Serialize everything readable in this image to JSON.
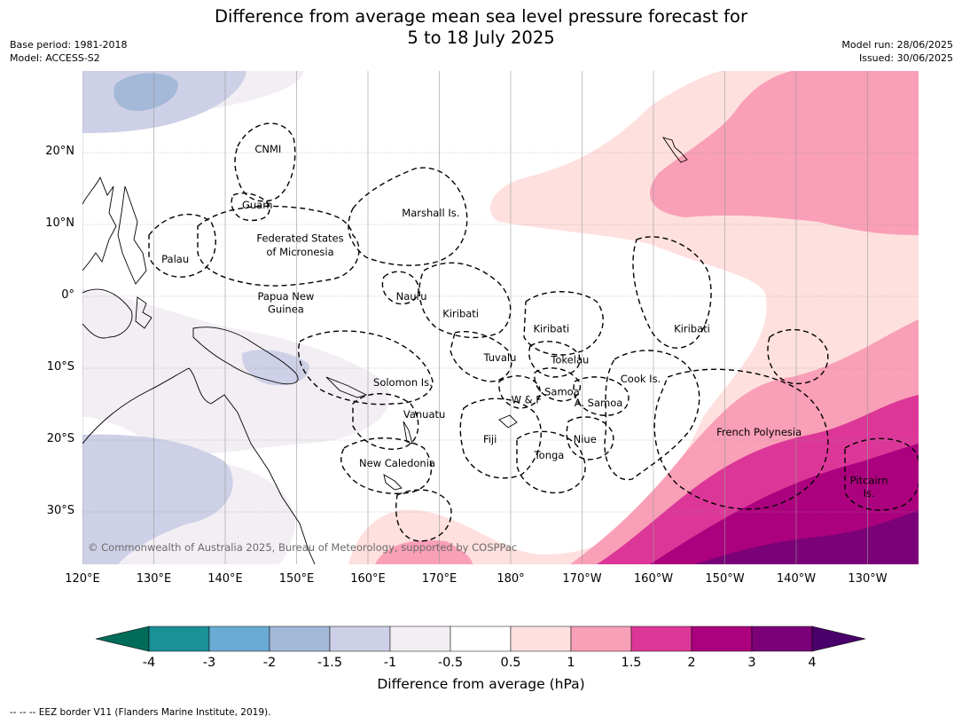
{
  "title_line1": "Difference from average mean sea level pressure forecast for",
  "title_line2": "5 to 18 July 2025",
  "meta": {
    "base_period": "Base period: 1981-2018",
    "model": "Model: ACCESS-S2",
    "model_run": "Model run: 28/06/2025",
    "issued": "Issued: 30/06/2025"
  },
  "map": {
    "lon_labels": [
      "120°E",
      "130°E",
      "140°E",
      "150°E",
      "160°E",
      "170°E",
      "180°",
      "170°W",
      "160°W",
      "150°W",
      "140°W",
      "130°W"
    ],
    "lat_labels": [
      "20°N",
      "10°N",
      "0°",
      "10°S",
      "20°S",
      "30°S"
    ],
    "places": [
      {
        "name": "CNMI",
        "lon": 146,
        "lat": 20.5
      },
      {
        "name": "Guam",
        "lon": 144.5,
        "lat": 12.7
      },
      {
        "name": "Marshall Is.",
        "lon": 168.8,
        "lat": 11.6
      },
      {
        "name": "Federated States",
        "lon": 150.5,
        "lat": 8.1
      },
      {
        "name": "of Micronesia",
        "lon": 150.5,
        "lat": 6.2
      },
      {
        "name": "Palau",
        "lon": 133,
        "lat": 5.2
      },
      {
        "name": "Papua New",
        "lon": 148.5,
        "lat": 0
      },
      {
        "name": "Guinea",
        "lon": 148.5,
        "lat": -1.8
      },
      {
        "name": "Nauru",
        "lon": 166.1,
        "lat": 0
      },
      {
        "name": "Kiribati",
        "lon": 173,
        "lat": -2.4
      },
      {
        "name": "Kiribati",
        "lon": -174.3,
        "lat": -4.5
      },
      {
        "name": "Kiribati",
        "lon": -154.6,
        "lat": -4.5
      },
      {
        "name": "Tuvalu",
        "lon": 178.5,
        "lat": -8.5
      },
      {
        "name": "Tokelau",
        "lon": -171.7,
        "lat": -8.8
      },
      {
        "name": "Cook Is.",
        "lon": -161.8,
        "lat": -11.5
      },
      {
        "name": "Solomon Is.",
        "lon": 164.9,
        "lat": -12
      },
      {
        "name": "Samoa",
        "lon": -172.8,
        "lat": -13.3
      },
      {
        "name": "W & F",
        "lon": -177.8,
        "lat": -14.4
      },
      {
        "name": "A. Samoa",
        "lon": -167.7,
        "lat": -14.8
      },
      {
        "name": "Vanuatu",
        "lon": 167.9,
        "lat": -16.4
      },
      {
        "name": "French Polynesia",
        "lon": -145.2,
        "lat": -18.9
      },
      {
        "name": "Fiji",
        "lon": 177.1,
        "lat": -19.9
      },
      {
        "name": "Niue",
        "lon": -169.6,
        "lat": -19.9
      },
      {
        "name": "Tonga",
        "lon": -174.6,
        "lat": -22.1
      },
      {
        "name": "New Caledonia",
        "lon": 164.1,
        "lat": -23.2
      },
      {
        "name": "Pitcairn",
        "lon": -129.8,
        "lat": -25.6
      },
      {
        "name": "Is.",
        "lon": -129.8,
        "lat": -27.4
      }
    ],
    "copyright": "© Commonwealth of Australia 2025, Bureau of Meteorology, supported by COSPPac"
  },
  "colorbar": {
    "ticks": [
      "-4",
      "-3",
      "-2",
      "-1.5",
      "-1",
      "-0.5",
      "0.5",
      "1",
      "1.5",
      "2",
      "3",
      "4"
    ],
    "colors": [
      "#1a9097",
      "#6aabd6",
      "#a4b8d8",
      "#cdd0e6",
      "#f2eef4",
      "#ffffff",
      "#fee0de",
      "#f99fb7",
      "#dc3798",
      "#ac017e",
      "#7b0178"
    ],
    "under_color": "#016c59",
    "over_color": "#49006a",
    "label": "Difference from average (hPa)"
  },
  "footer": "--  --  -- EEZ border V11 (Flanders Marine Institute, 2019)."
}
